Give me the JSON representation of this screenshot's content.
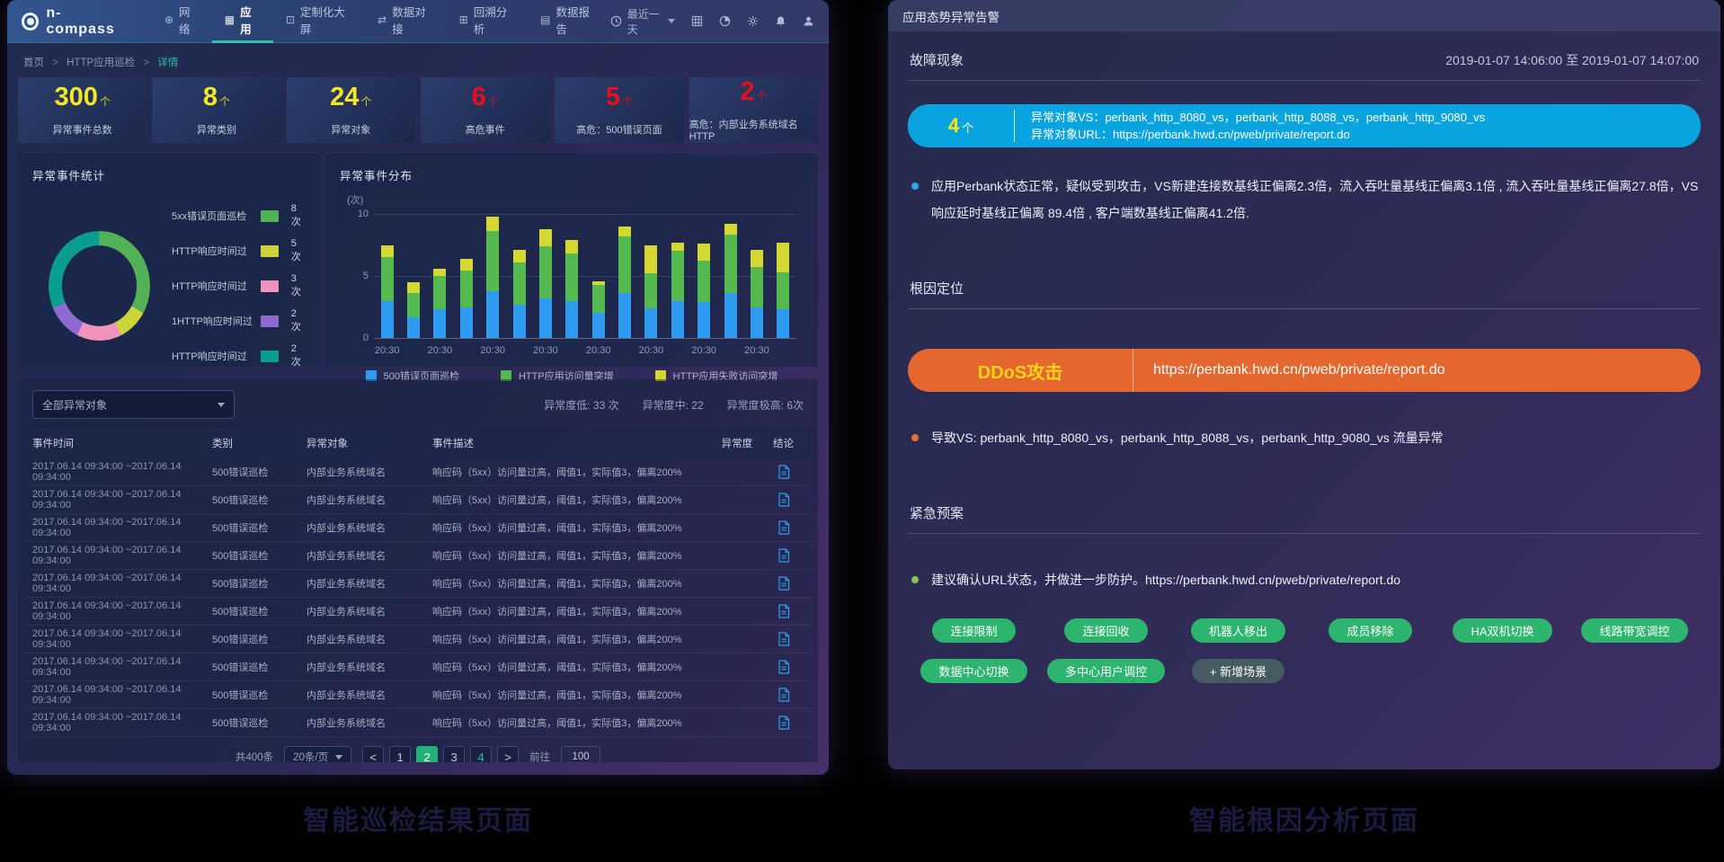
{
  "theme": {
    "accent_teal": "#2fc2a5",
    "stat_yellow": "#f5e723",
    "stat_red": "#e80f1a",
    "banner_blue": "#09a4df",
    "banner_orange": "#e3672f",
    "button_green": "#2db46e"
  },
  "app": {
    "brand": "n-compass"
  },
  "nav": {
    "items": [
      {
        "name": "network",
        "label": "网络",
        "icon": "globe",
        "active": false
      },
      {
        "name": "application",
        "label": "应用",
        "icon": "apps",
        "active": true
      },
      {
        "name": "custom-screen",
        "label": "定制化大屏",
        "icon": "screen",
        "active": false
      },
      {
        "name": "data-dock",
        "label": "数据对接",
        "icon": "link",
        "active": false
      },
      {
        "name": "retro-analysis",
        "label": "回溯分析",
        "icon": "analysis",
        "active": false
      },
      {
        "name": "data-report",
        "label": "数据报告",
        "icon": "report",
        "active": false
      }
    ],
    "time_range": "最近一天",
    "right_icons": [
      "grid",
      "dashboard",
      "gear",
      "bell",
      "user"
    ]
  },
  "breadcrumb": {
    "parts": [
      "首页",
      "HTTP应用巡检",
      "详情"
    ]
  },
  "stat_cards": [
    {
      "value": "300",
      "unit": "个",
      "label": "异常事件总数",
      "color": "#f5e723"
    },
    {
      "value": "8",
      "unit": "个",
      "label": "异常类别",
      "color": "#f5e723"
    },
    {
      "value": "24",
      "unit": "个",
      "label": "异常对象",
      "color": "#f5e723"
    },
    {
      "value": "6",
      "unit": "个",
      "label": "高危事件",
      "color": "#e80f1a"
    },
    {
      "value": "5",
      "unit": "个",
      "label": "高危：500错误页面",
      "color": "#e80f1a"
    },
    {
      "value": "2",
      "unit": "个",
      "label": "高危：内部业务系统域名HTTP",
      "color": "#e80f1a"
    }
  ],
  "chart_data": [
    {
      "type": "pie",
      "title": "异常事件统计",
      "donut": true,
      "legend_position": "right",
      "unit": "次",
      "labels": [
        "5xx错误页面巡检",
        "HTTP响应时间过",
        "HTTP响应时间过",
        "1HTTP响应时间过",
        "HTTP响应时间过"
      ],
      "values": [
        8,
        5,
        3,
        2,
        2
      ],
      "colors": [
        "#53b257",
        "#cdd43a",
        "#f094bb",
        "#8f6ad2",
        "#0b9e90"
      ],
      "visual_angles": [
        122,
        34,
        48,
        40,
        116
      ]
    },
    {
      "type": "bar",
      "title": "异常事件分布",
      "stacked": true,
      "grid": true,
      "legend_position": "bottom",
      "ylabel": "(次)",
      "ylim": [
        0,
        10
      ],
      "yticks": [
        "0",
        "5",
        "10"
      ],
      "x_tick_label": "20:30",
      "categories": [
        "20:30",
        "",
        "20:30",
        "",
        "20:30",
        "",
        "20:30",
        "",
        "20:30",
        "",
        "20:30",
        "",
        "20:30",
        "",
        "20:30",
        ""
      ],
      "series": [
        {
          "name": "500错误页面巡检",
          "color": "#2e9af0",
          "values": [
            3.0,
            1.7,
            2.3,
            2.5,
            3.8,
            2.7,
            3.2,
            3.0,
            2.0,
            3.6,
            2.4,
            3.0,
            2.9,
            3.6,
            2.5,
            2.3
          ]
        },
        {
          "name": "HTTP应用访问量突增",
          "color": "#54b94e",
          "values": [
            3.5,
            1.9,
            2.7,
            2.9,
            4.8,
            3.4,
            4.2,
            3.8,
            2.3,
            4.6,
            2.8,
            4.0,
            3.3,
            4.7,
            3.2,
            3.0
          ]
        },
        {
          "name": "HTTP应用失败访问突增",
          "color": "#d6d832",
          "values": [
            1.0,
            0.9,
            0.6,
            1.0,
            1.2,
            1.0,
            1.4,
            1.1,
            0.3,
            0.8,
            2.3,
            0.7,
            1.4,
            0.9,
            1.4,
            2.4
          ]
        }
      ]
    }
  ],
  "table": {
    "filter_label": "全部异常对象",
    "severity_stats": [
      "异常度低: 33 次",
      "异常度中: 22",
      "异常度极高: 6次"
    ],
    "columns": [
      "事件时间",
      "类别",
      "异常对象",
      "事件描述",
      "异常度",
      "结论"
    ],
    "severity_colors": {
      "red": "#e60b1e",
      "orange": "#f5a02a",
      "yellow": "#aea667"
    },
    "rows": [
      {
        "time": "2017.06.14 09:34:00 ~2017.06.14 09:34:00",
        "category": "500错误巡检",
        "object": "内部业务系统域名",
        "description": "响应码（5xx）访问量过高，阈值1，实际值3，偏离200%",
        "severity": "red"
      },
      {
        "time": "2017.06.14 09:34:00 ~2017.06.14 09:34:00",
        "category": "500错误巡检",
        "object": "内部业务系统域名",
        "description": "响应码（5xx）访问量过高，阈值1，实际值3，偏离200%",
        "severity": "orange"
      },
      {
        "time": "2017.06.14 09:34:00 ~2017.06.14 09:34:00",
        "category": "500错误巡检",
        "object": "内部业务系统域名",
        "description": "响应码（5xx）访问量过高，阈值1，实际值3，偏离200%",
        "severity": "yellow"
      },
      {
        "time": "2017.06.14 09:34:00 ~2017.06.14 09:34:00",
        "category": "500错误巡检",
        "object": "内部业务系统域名",
        "description": "响应码（5xx）访问量过高，阈值1，实际值3，偏离200%",
        "severity": "orange"
      },
      {
        "time": "2017.06.14 09:34:00 ~2017.06.14 09:34:00",
        "category": "500错误巡检",
        "object": "内部业务系统域名",
        "description": "响应码（5xx）访问量过高，阈值1，实际值3，偏离200%",
        "severity": "red"
      },
      {
        "time": "2017.06.14 09:34:00 ~2017.06.14 09:34:00",
        "category": "500错误巡检",
        "object": "内部业务系统域名",
        "description": "响应码（5xx）访问量过高，阈值1，实际值3，偏离200%",
        "severity": "yellow"
      },
      {
        "time": "2017.06.14 09:34:00 ~2017.06.14 09:34:00",
        "category": "500错误巡检",
        "object": "内部业务系统域名",
        "description": "响应码（5xx）访问量过高，阈值1，实际值3，偏离200%",
        "severity": "yellow"
      },
      {
        "time": "2017.06.14 09:34:00 ~2017.06.14 09:34:00",
        "category": "500错误巡检",
        "object": "内部业务系统域名",
        "description": "响应码（5xx）访问量过高，阈值1，实际值3，偏离200%",
        "severity": "orange"
      },
      {
        "time": "2017.06.14 09:34:00 ~2017.06.14 09:34:00",
        "category": "500错误巡检",
        "object": "内部业务系统域名",
        "description": "响应码（5xx）访问量过高，阈值1，实际值3，偏离200%",
        "severity": "yellow"
      },
      {
        "time": "2017.06.14 09:34:00 ~2017.06.14 09:34:00",
        "category": "500错误巡检",
        "object": "内部业务系统域名",
        "description": "响应码（5xx）访问量过高，阈值1，实际值3，偏离200%",
        "severity": "yellow"
      }
    ]
  },
  "pagination": {
    "total_label": "共400条",
    "page_size_label": "20条/页",
    "prev_label": "<",
    "next_label": ">",
    "pages": [
      "1",
      "2",
      "3",
      "4"
    ],
    "active_page": "2",
    "accent_page": "4",
    "goto_label": "前往",
    "goto_value": "100"
  },
  "alert_panel": {
    "title": "应用态势异常告警",
    "fault": {
      "header": "故障现象",
      "time_range": "2019-01-07 14:06:00  至  2019-01-07 14:07:00",
      "banner": {
        "count": "4",
        "unit": "个",
        "color": "#09a4df",
        "lines": [
          "异常对象VS：perbank_http_8080_vs，perbank_http_8088_vs，perbank_http_9080_vs",
          "异常对象URL：https://perbank.hwd.cn/pweb/private/report.do"
        ]
      },
      "bullet": {
        "color": "#2da4e8",
        "text": "应用Perbank状态正常，疑似受到攻击，VS新建连接数基线正偏离2.3倍，流入吞吐量基线正偏离3.1倍 , 流入吞吐量基线正偏离27.8倍，VS响应延时基线正偏离 89.4倍 , 客户端数基线正偏离41.2倍."
      }
    },
    "root_cause": {
      "header": "根因定位",
      "banner": {
        "label": "DDoS攻击",
        "url": "https://perbank.hwd.cn/pweb/private/report.do",
        "color": "#e3672f"
      },
      "bullet": {
        "color": "#e8713c",
        "text": "导致VS: perbank_http_8080_vs，perbank_http_8088_vs，perbank_http_9080_vs 流量异常"
      }
    },
    "plan": {
      "header": "紧急预案",
      "bullet": {
        "color": "#8bc34a",
        "text": "建议确认URL状态，并做进一步防护。https://perbank.hwd.cn/pweb/private/report.do"
      },
      "buttons": [
        {
          "label": "连接限制",
          "variant": "green"
        },
        {
          "label": "连接回收",
          "variant": "green"
        },
        {
          "label": "机器人移出",
          "variant": "green"
        },
        {
          "label": "成员移除",
          "variant": "green"
        },
        {
          "label": "HA双机切换",
          "variant": "green"
        },
        {
          "label": "线路带宽调控",
          "variant": "green"
        },
        {
          "label": "数据中心切换",
          "variant": "green"
        },
        {
          "label": "多中心用户调控",
          "variant": "green"
        },
        {
          "label": "+ 新增场景",
          "variant": "dark"
        }
      ]
    }
  },
  "captions": {
    "left": "智能巡检结果页面",
    "right": "智能根因分析页面"
  }
}
